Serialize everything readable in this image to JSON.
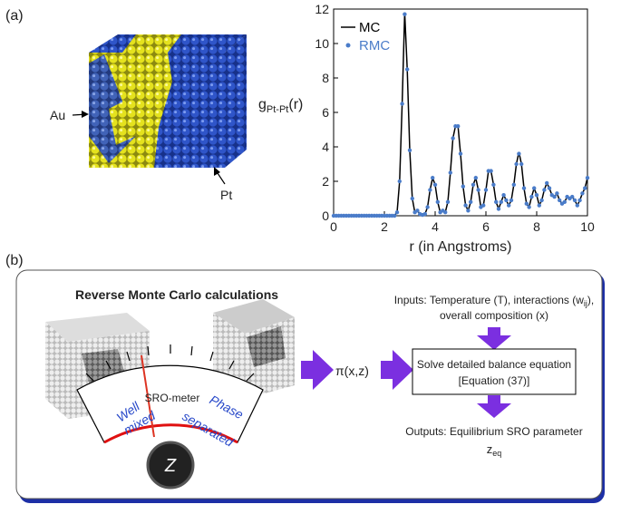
{
  "panel_a": {
    "label": "(a)",
    "au": "Au",
    "pt": "Pt"
  },
  "chart_data": {
    "type": "line",
    "ylabel": {
      "main": "g",
      "sub": "Pt-Pt",
      "tail": "(r)"
    },
    "xlabel": "r (in Angstroms)",
    "xlim": [
      0,
      10
    ],
    "ylim": [
      0,
      12
    ],
    "xticks": [
      0,
      2,
      4,
      6,
      8,
      10
    ],
    "yticks": [
      0,
      2,
      4,
      6,
      8,
      10,
      12
    ],
    "grid": false,
    "legend": "upper-left",
    "x": [
      0,
      0.1,
      0.2,
      0.3,
      0.4,
      0.5,
      0.6,
      0.7,
      0.8,
      0.9,
      1,
      1.1,
      1.2,
      1.3,
      1.4,
      1.5,
      1.6,
      1.7,
      1.8,
      1.9,
      2,
      2.1,
      2.2,
      2.3,
      2.4,
      2.5,
      2.6,
      2.7,
      2.8,
      2.9,
      3,
      3.1,
      3.2,
      3.3,
      3.4,
      3.5,
      3.6,
      3.7,
      3.8,
      3.9,
      4,
      4.1,
      4.2,
      4.3,
      4.4,
      4.5,
      4.6,
      4.7,
      4.8,
      4.9,
      5,
      5.1,
      5.2,
      5.3,
      5.4,
      5.5,
      5.6,
      5.7,
      5.8,
      5.9,
      6,
      6.1,
      6.2,
      6.3,
      6.4,
      6.5,
      6.6,
      6.7,
      6.8,
      6.9,
      7,
      7.1,
      7.2,
      7.3,
      7.4,
      7.5,
      7.6,
      7.7,
      7.8,
      7.9,
      8,
      8.1,
      8.2,
      8.3,
      8.4,
      8.5,
      8.6,
      8.7,
      8.8,
      8.9,
      9,
      9.1,
      9.2,
      9.3,
      9.4,
      9.5,
      9.6,
      9.7,
      9.8,
      9.9,
      10
    ],
    "series": [
      {
        "name": "MC",
        "color": "#000000",
        "style": "line",
        "values": [
          0,
          0,
          0,
          0,
          0,
          0,
          0,
          0,
          0,
          0,
          0,
          0,
          0,
          0,
          0,
          0,
          0,
          0,
          0,
          0,
          0,
          0,
          0,
          0,
          0,
          0.2,
          2.0,
          6.5,
          11.8,
          8.5,
          3.8,
          1.0,
          0.2,
          0.3,
          0.1,
          0.05,
          0.1,
          0.5,
          1.5,
          2.2,
          1.8,
          0.8,
          0.2,
          0.3,
          0.2,
          0.8,
          2.5,
          4.5,
          5.2,
          5.2,
          3.6,
          1.7,
          0.6,
          0.3,
          0.8,
          1.8,
          2.2,
          1.5,
          0.5,
          0.6,
          1.5,
          2.6,
          2.6,
          1.8,
          0.8,
          0.4,
          0.8,
          1.2,
          0.9,
          0.6,
          0.9,
          1.8,
          3.0,
          3.7,
          3.0,
          1.6,
          0.7,
          0.5,
          1.1,
          1.6,
          1.2,
          0.6,
          0.9,
          1.5,
          1.9,
          1.6,
          1.2,
          1.1,
          1.3,
          0.9,
          0.7,
          0.8,
          1.1,
          1.0,
          1.1,
          0.9,
          0.6,
          0.9,
          1.3,
          1.6,
          2.2
        ]
      },
      {
        "name": "RMC",
        "color": "#4a7cc9",
        "style": "dots",
        "values": [
          0,
          0,
          0,
          0,
          0,
          0,
          0,
          0,
          0,
          0,
          0,
          0,
          0,
          0,
          0,
          0,
          0,
          0,
          0,
          0,
          0,
          0,
          0,
          0,
          0,
          0.2,
          2.0,
          6.5,
          11.7,
          8.5,
          3.8,
          1.0,
          0.2,
          0.3,
          0.1,
          0.05,
          0.1,
          0.5,
          1.5,
          2.2,
          1.8,
          0.8,
          0.2,
          0.3,
          0.2,
          0.8,
          2.5,
          4.5,
          5.2,
          5.2,
          3.6,
          1.7,
          0.6,
          0.3,
          0.8,
          1.8,
          2.2,
          1.5,
          0.5,
          0.6,
          1.5,
          2.6,
          2.6,
          1.8,
          0.8,
          0.4,
          0.8,
          1.2,
          0.9,
          0.6,
          0.9,
          1.8,
          3.0,
          3.6,
          3.0,
          1.6,
          0.7,
          0.5,
          1.1,
          1.6,
          1.2,
          0.6,
          0.9,
          1.5,
          1.9,
          1.6,
          1.2,
          1.1,
          1.3,
          0.9,
          0.7,
          0.8,
          1.1,
          1.0,
          1.1,
          0.9,
          0.6,
          0.9,
          1.3,
          1.6,
          2.2
        ]
      }
    ]
  },
  "panel_b": {
    "label": "(b)",
    "title": "Reverse Monte Carlo calculations",
    "sro_meter": "SRO-meter",
    "well": "Well",
    "mixed": "mixed",
    "phase": "Phase",
    "separated": "separated",
    "knob": "Z",
    "pi": "π(x,z)",
    "inputs": [
      "Inputs: Temperature (T), interactions (w",
      "ij",
      "),"
    ],
    "inputs2": "overall composition (x)",
    "solve": "Solve detailed balance equation",
    "equation": "[Equation (37)]",
    "outputs": "Outputs: Equilibrium SRO parameter",
    "zeq": [
      "z",
      "eq"
    ]
  }
}
